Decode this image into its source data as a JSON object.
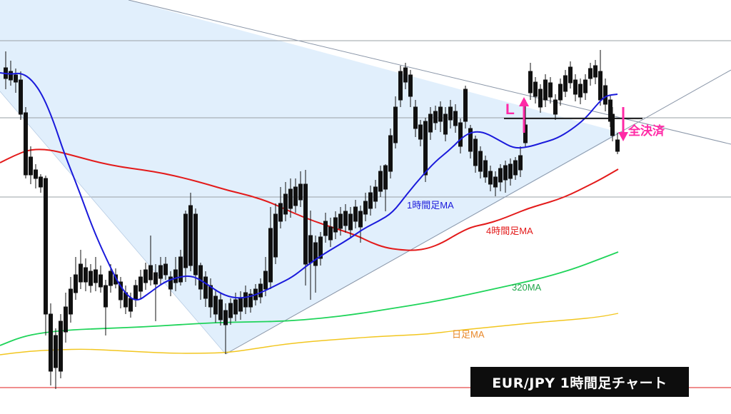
{
  "title": "EUR/JPY  1時間足チャート",
  "labels": {
    "ma_1h": "1時間足MA",
    "ma_4h": "4時間足MA",
    "ma_320": "320MA",
    "ma_daily": "日足MA",
    "long_entry": "L",
    "exit": "全決済"
  },
  "colors": {
    "ma_1h": "#1a1adb",
    "ma_4h": "#e31a1a",
    "ma_320": "#1fd45a",
    "ma_daily": "#f2c61f",
    "annotation": "#ff2aa6",
    "triangle_fill": "#dcecfb",
    "candle": "#111111",
    "grid": "#9aa0a6",
    "bottom_line": "#e84a4a",
    "title_bg": "#0d0d0d"
  },
  "chart_data": {
    "type": "candlestick",
    "title": "EUR/JPY  1時間足チャート",
    "xlabel": "",
    "ylabel": "",
    "grid": false,
    "series_labels": [
      "1時間足MA",
      "4時間足MA",
      "320MA",
      "日足MA"
    ],
    "annotations": [
      "L",
      "全決済"
    ]
  }
}
